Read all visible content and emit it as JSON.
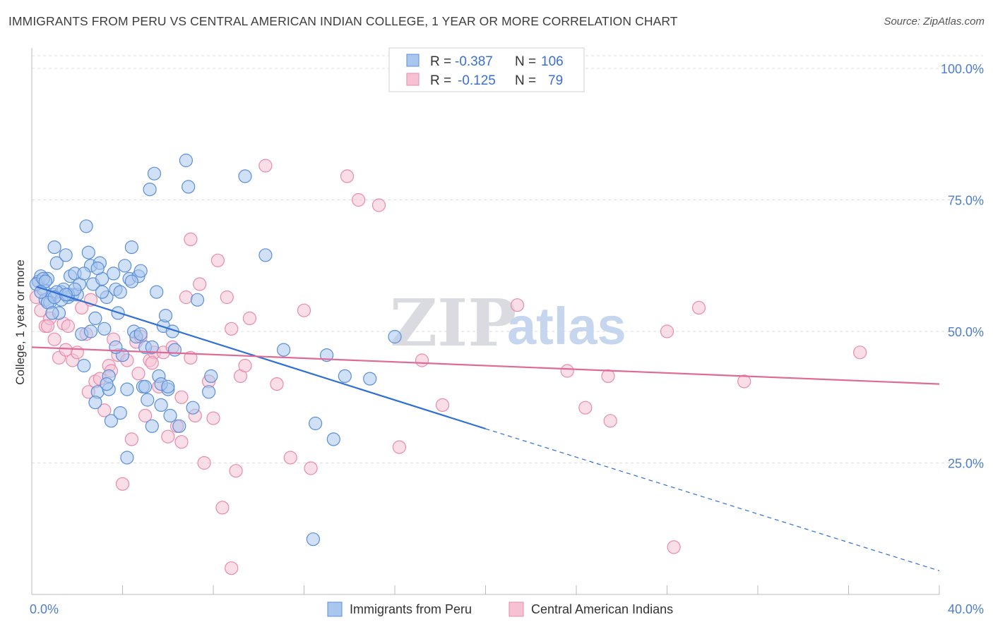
{
  "title": "IMMIGRANTS FROM PERU VS CENTRAL AMERICAN INDIAN COLLEGE, 1 YEAR OR MORE CORRELATION CHART",
  "source": "Source: ZipAtlas.com",
  "watermark": {
    "zip": "ZIP",
    "atlas": "atlas"
  },
  "legend": {
    "r_label": "R =",
    "n_label": "N =",
    "rows": [
      {
        "r": "-0.387",
        "n": "106",
        "color": "#6f9fe0"
      },
      {
        "r": "-0.125",
        "n": "79",
        "color": "#f09ab6"
      }
    ]
  },
  "colors": {
    "blue_fill": "#a9c6ef",
    "blue_stroke": "#5b8ed8",
    "blue_line": "#2f6fd6",
    "pink_fill": "#f6c2d3",
    "pink_stroke": "#e98aaa",
    "pink_line": "#e06a96",
    "grid": "#dddddd",
    "axis_label": "#4f7ec9"
  },
  "chart_data": {
    "type": "scatter",
    "title": "IMMIGRANTS FROM PERU VS CENTRAL AMERICAN INDIAN COLLEGE, 1 YEAR OR MORE CORRELATION CHART",
    "xlabel": "",
    "ylabel": "College, 1 year or more",
    "xlim": [
      0,
      40
    ],
    "ylim": [
      0,
      105
    ],
    "x_tick_labels": [
      "0.0%",
      "40.0%"
    ],
    "y_ticks": [
      25,
      50,
      75,
      100
    ],
    "y_tick_labels": [
      "25.0%",
      "50.0%",
      "75.0%",
      "100.0%"
    ],
    "grid": true,
    "legend_position": "top-center",
    "series": [
      {
        "name": "Immigrants from Peru",
        "R": -0.387,
        "N": 106,
        "trend": {
          "x0": 0.2,
          "y0": 58.5,
          "x1": 20.0,
          "y1": 31.5,
          "dash_x1": 40.0,
          "dash_y1": 4.5
        },
        "points": [
          [
            0.3,
            59.5
          ],
          [
            0.4,
            60.5
          ],
          [
            0.5,
            58.0
          ],
          [
            0.6,
            56.0
          ],
          [
            0.7,
            60.0
          ],
          [
            0.8,
            55.5
          ],
          [
            0.9,
            57.0
          ],
          [
            1.0,
            66.0
          ],
          [
            1.1,
            63.0
          ],
          [
            1.2,
            53.5
          ],
          [
            1.3,
            57.5
          ],
          [
            1.4,
            58.0
          ],
          [
            1.5,
            64.5
          ],
          [
            1.6,
            56.5
          ],
          [
            1.7,
            60.5
          ],
          [
            1.8,
            57.0
          ],
          [
            1.9,
            61.0
          ],
          [
            2.0,
            57.0
          ],
          [
            2.1,
            59.0
          ],
          [
            2.2,
            49.5
          ],
          [
            2.3,
            43.5
          ],
          [
            2.4,
            70.0
          ],
          [
            2.5,
            65.0
          ],
          [
            2.6,
            62.5
          ],
          [
            2.7,
            59.0
          ],
          [
            2.8,
            52.5
          ],
          [
            2.9,
            38.5
          ],
          [
            3.0,
            63.0
          ],
          [
            3.1,
            60.0
          ],
          [
            3.2,
            50.5
          ],
          [
            3.3,
            56.5
          ],
          [
            3.4,
            41.5
          ],
          [
            3.5,
            33.0
          ],
          [
            3.6,
            61.0
          ],
          [
            3.7,
            58.0
          ],
          [
            3.8,
            53.5
          ],
          [
            3.9,
            34.5
          ],
          [
            4.0,
            45.5
          ],
          [
            4.1,
            62.5
          ],
          [
            4.2,
            26.0
          ],
          [
            4.3,
            60.0
          ],
          [
            4.4,
            66.0
          ],
          [
            4.5,
            50.0
          ],
          [
            4.6,
            49.0
          ],
          [
            4.7,
            60.5
          ],
          [
            4.8,
            61.5
          ],
          [
            4.9,
            39.5
          ],
          [
            5.0,
            47.0
          ],
          [
            5.1,
            37.0
          ],
          [
            5.2,
            77.0
          ],
          [
            5.3,
            32.0
          ],
          [
            5.4,
            80.0
          ],
          [
            5.5,
            57.5
          ],
          [
            5.6,
            41.5
          ],
          [
            5.7,
            36.0
          ],
          [
            5.8,
            51.0
          ],
          [
            5.9,
            53.0
          ],
          [
            6.0,
            39.0
          ],
          [
            6.1,
            34.0
          ],
          [
            6.2,
            50.0
          ],
          [
            6.3,
            46.5
          ],
          [
            6.5,
            32.0
          ],
          [
            6.8,
            82.5
          ],
          [
            6.9,
            77.5
          ],
          [
            7.1,
            35.5
          ],
          [
            7.3,
            56.0
          ],
          [
            7.8,
            38.5
          ],
          [
            7.9,
            41.5
          ],
          [
            9.4,
            79.5
          ],
          [
            10.3,
            64.5
          ],
          [
            11.1,
            46.5
          ],
          [
            12.4,
            10.5
          ],
          [
            12.5,
            32.5
          ],
          [
            13.0,
            45.5
          ],
          [
            13.3,
            29.5
          ],
          [
            13.8,
            41.5
          ],
          [
            14.9,
            41.0
          ],
          [
            16.0,
            49.0
          ],
          [
            0.2,
            59.0
          ],
          [
            0.5,
            60.0
          ],
          [
            0.6,
            59.5
          ],
          [
            0.7,
            55.5
          ],
          [
            0.9,
            53.5
          ],
          [
            1.1,
            57.5
          ],
          [
            1.3,
            56.0
          ],
          [
            1.6,
            57.0
          ],
          [
            1.9,
            58.0
          ],
          [
            2.3,
            61.0
          ],
          [
            2.6,
            50.0
          ],
          [
            2.9,
            62.0
          ],
          [
            3.1,
            57.5
          ],
          [
            3.4,
            39.0
          ],
          [
            3.7,
            47.0
          ],
          [
            3.9,
            57.5
          ],
          [
            4.2,
            39.0
          ],
          [
            4.4,
            59.5
          ],
          [
            4.8,
            49.5
          ],
          [
            5.0,
            39.5
          ],
          [
            5.3,
            47.0
          ],
          [
            5.7,
            40.0
          ],
          [
            6.0,
            39.5
          ],
          [
            1.0,
            56.5
          ],
          [
            1.5,
            57.0
          ],
          [
            2.8,
            36.5
          ],
          [
            0.4,
            57.5
          ],
          [
            3.3,
            40.0
          ]
        ]
      },
      {
        "name": "Central American Indians",
        "R": -0.125,
        "N": 79,
        "trend": {
          "x0": 0.0,
          "y0": 47.0,
          "x1": 40.0,
          "y1": 40.0
        },
        "points": [
          [
            0.2,
            56.5
          ],
          [
            0.4,
            54.0
          ],
          [
            0.6,
            51.0
          ],
          [
            0.8,
            52.5
          ],
          [
            1.0,
            48.5
          ],
          [
            1.2,
            45.0
          ],
          [
            1.4,
            51.5
          ],
          [
            1.6,
            51.0
          ],
          [
            1.8,
            44.5
          ],
          [
            2.0,
            46.0
          ],
          [
            2.2,
            54.5
          ],
          [
            2.4,
            49.5
          ],
          [
            2.6,
            56.0
          ],
          [
            2.8,
            40.5
          ],
          [
            3.0,
            41.0
          ],
          [
            3.2,
            35.0
          ],
          [
            3.4,
            43.5
          ],
          [
            3.6,
            48.5
          ],
          [
            3.8,
            45.5
          ],
          [
            4.0,
            21.0
          ],
          [
            4.2,
            44.5
          ],
          [
            4.4,
            29.5
          ],
          [
            4.6,
            48.0
          ],
          [
            4.8,
            49.0
          ],
          [
            5.0,
            34.0
          ],
          [
            5.2,
            44.5
          ],
          [
            5.4,
            46.0
          ],
          [
            5.6,
            39.5
          ],
          [
            5.8,
            46.0
          ],
          [
            6.0,
            30.0
          ],
          [
            6.2,
            47.0
          ],
          [
            6.4,
            32.0
          ],
          [
            6.6,
            37.5
          ],
          [
            6.8,
            56.5
          ],
          [
            7.0,
            45.0
          ],
          [
            7.2,
            34.0
          ],
          [
            7.4,
            59.0
          ],
          [
            7.6,
            25.0
          ],
          [
            7.8,
            40.5
          ],
          [
            8.0,
            33.5
          ],
          [
            8.2,
            63.5
          ],
          [
            8.4,
            16.5
          ],
          [
            8.6,
            56.5
          ],
          [
            8.8,
            50.5
          ],
          [
            9.0,
            23.5
          ],
          [
            9.2,
            41.5
          ],
          [
            9.4,
            43.5
          ],
          [
            9.6,
            52.5
          ],
          [
            10.3,
            81.5
          ],
          [
            10.8,
            40.0
          ],
          [
            11.4,
            26.0
          ],
          [
            12.0,
            54.0
          ],
          [
            12.3,
            24.0
          ],
          [
            13.9,
            79.5
          ],
          [
            14.4,
            75.0
          ],
          [
            15.3,
            74.0
          ],
          [
            16.2,
            28.0
          ],
          [
            17.2,
            44.5
          ],
          [
            18.1,
            36.0
          ],
          [
            21.4,
            55.0
          ],
          [
            23.6,
            42.5
          ],
          [
            24.4,
            35.5
          ],
          [
            25.4,
            41.5
          ],
          [
            25.5,
            33.0
          ],
          [
            28.0,
            50.0
          ],
          [
            28.3,
            9.0
          ],
          [
            29.4,
            54.5
          ],
          [
            31.4,
            40.5
          ],
          [
            36.5,
            46.0
          ],
          [
            0.3,
            59.5
          ],
          [
            0.7,
            51.0
          ],
          [
            1.5,
            46.5
          ],
          [
            2.5,
            38.5
          ],
          [
            3.5,
            42.5
          ],
          [
            4.7,
            42.0
          ],
          [
            6.6,
            29.0
          ],
          [
            8.8,
            5.0
          ],
          [
            7.0,
            67.5
          ],
          [
            5.3,
            44.0
          ]
        ]
      }
    ]
  },
  "bottom_legend": [
    {
      "label": "Immigrants from Peru",
      "color": "#6f9fe0"
    },
    {
      "label": "Central American Indians",
      "color": "#f09ab6"
    }
  ]
}
